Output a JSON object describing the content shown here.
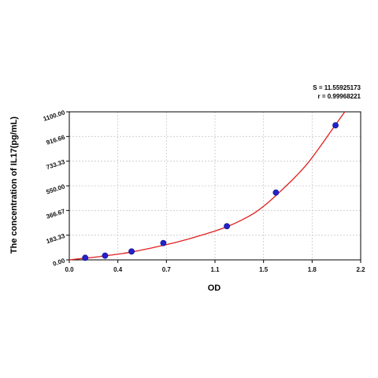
{
  "chart_data": {
    "type": "scatter",
    "xlabel": "OD",
    "ylabel": "The concentration of IL17(pg/mL)",
    "xlim": [
      0.0,
      2.2
    ],
    "ylim": [
      0.0,
      1100.0
    ],
    "x_ticks": [
      "0.0",
      "0.4",
      "0.7",
      "1.1",
      "1.5",
      "1.8",
      "2.2"
    ],
    "x_tick_values": [
      0.0,
      0.3667,
      0.7333,
      1.1,
      1.4667,
      1.8333,
      2.2
    ],
    "y_ticks": [
      "0.00",
      "183.33",
      "366.67",
      "550.00",
      "733.33",
      "916.66",
      "1100.00"
    ],
    "y_tick_values": [
      0.0,
      183.33,
      366.67,
      550.0,
      733.33,
      916.66,
      1100.0
    ],
    "grid": true,
    "stats": {
      "s": "S = 11.55925173",
      "r": "r = 0.99968221"
    },
    "colors": {
      "curve": "#e02020",
      "points": "#2222cc",
      "grid": "#c8c8c8",
      "axis": "#000000"
    },
    "points": [
      {
        "x": 0.12,
        "y": 15.6
      },
      {
        "x": 0.27,
        "y": 31.2
      },
      {
        "x": 0.47,
        "y": 62.5
      },
      {
        "x": 0.71,
        "y": 125
      },
      {
        "x": 1.19,
        "y": 250
      },
      {
        "x": 1.56,
        "y": 500
      },
      {
        "x": 2.01,
        "y": 1000
      }
    ],
    "fit_curve": [
      {
        "x": 0.0,
        "y": 0
      },
      {
        "x": 0.1,
        "y": 11
      },
      {
        "x": 0.2,
        "y": 21
      },
      {
        "x": 0.3,
        "y": 34
      },
      {
        "x": 0.4,
        "y": 47
      },
      {
        "x": 0.5,
        "y": 64
      },
      {
        "x": 0.6,
        "y": 84
      },
      {
        "x": 0.7,
        "y": 106
      },
      {
        "x": 0.8,
        "y": 129
      },
      {
        "x": 0.9,
        "y": 155
      },
      {
        "x": 1.0,
        "y": 184
      },
      {
        "x": 1.1,
        "y": 214
      },
      {
        "x": 1.2,
        "y": 250
      },
      {
        "x": 1.3,
        "y": 295
      },
      {
        "x": 1.4,
        "y": 350
      },
      {
        "x": 1.5,
        "y": 425
      },
      {
        "x": 1.6,
        "y": 515
      },
      {
        "x": 1.7,
        "y": 610
      },
      {
        "x": 1.8,
        "y": 718
      },
      {
        "x": 1.9,
        "y": 850
      },
      {
        "x": 2.0,
        "y": 990
      },
      {
        "x": 2.08,
        "y": 1100
      }
    ]
  }
}
